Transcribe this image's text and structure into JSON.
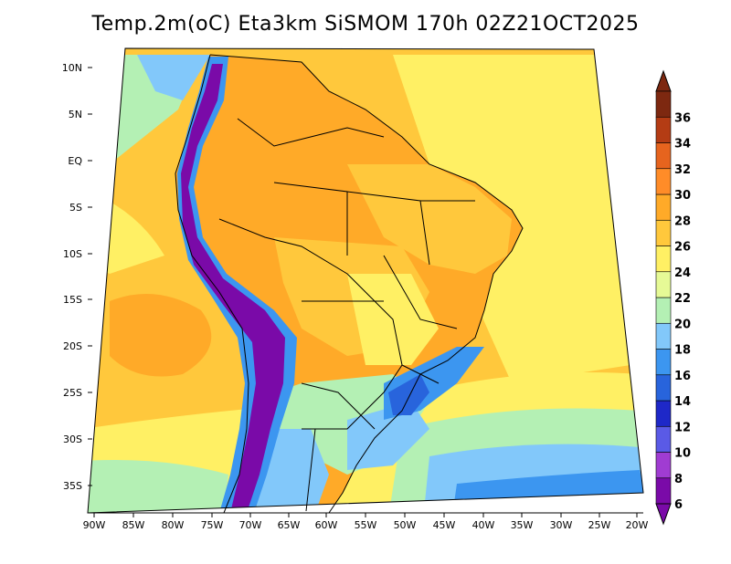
{
  "title": "Temp.2m(oC) Eta3km SiSMOM 170h 02Z21OCT2025",
  "lat_labels": [
    "10N",
    "5N",
    "EQ",
    "5S",
    "10S",
    "15S",
    "20S",
    "25S",
    "30S",
    "35S"
  ],
  "lon_labels": [
    "90W",
    "85W",
    "80W",
    "75W",
    "70W",
    "65W",
    "60W",
    "55W",
    "50W",
    "45W",
    "40W",
    "35W",
    "30W",
    "25W",
    "20W"
  ],
  "colorbar": {
    "labels": [
      "6",
      "8",
      "10",
      "12",
      "14",
      "16",
      "18",
      "20",
      "22",
      "24",
      "26",
      "28",
      "30",
      "32",
      "34",
      "36"
    ],
    "colors": [
      "#7a0aa8",
      "#a03cd2",
      "#5a5ae6",
      "#1e28c8",
      "#2864dc",
      "#3c96f0",
      "#82c8fa",
      "#b4f0b4",
      "#e6fa96",
      "#fff064",
      "#ffc83c",
      "#ffaa28",
      "#ff8c28",
      "#e6641e",
      "#b43c14",
      "#7d2810"
    ]
  },
  "palette": {
    "very_warm": "#ff8c28",
    "warm": "#ffaa28",
    "mild": "#ffc83c",
    "cool_yellow": "#fff064",
    "green": "#b4f0b4",
    "light_blue": "#82c8fa",
    "blue": "#3c96f0",
    "dark_blue": "#2864dc",
    "purple": "#7a0aa8"
  }
}
